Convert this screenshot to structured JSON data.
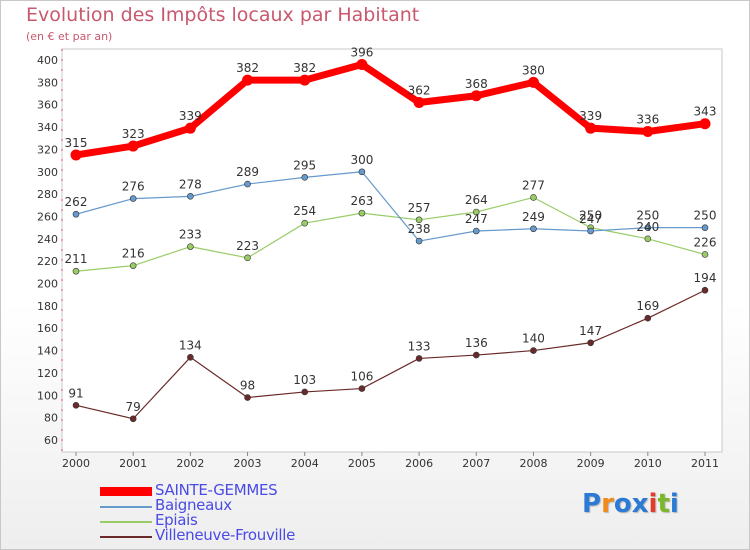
{
  "title": "Evolution des Impôts locaux par Habitant",
  "subtitle": "(en € et par an)",
  "chart_data": {
    "type": "line",
    "title": "Evolution des Impôts locaux par Habitant",
    "ylabel": "(en € et par an)",
    "xlabel": "",
    "x": [
      "2000",
      "2001",
      "2002",
      "2003",
      "2004",
      "2005",
      "2006",
      "2007",
      "2008",
      "2009",
      "2010",
      "2011"
    ],
    "ylim": [
      60,
      400
    ],
    "yticks": [
      60,
      80,
      100,
      120,
      140,
      160,
      180,
      200,
      220,
      240,
      260,
      280,
      300,
      320,
      340,
      360,
      380,
      400
    ],
    "grid": false,
    "series": [
      {
        "name": "SAINTE-GEMMES",
        "color": "#ff0000",
        "values": [
          315,
          323,
          339,
          382,
          382,
          396,
          362,
          368,
          380,
          339,
          336,
          343
        ]
      },
      {
        "name": "Baigneaux",
        "color": "#6699cc",
        "values": [
          262,
          276,
          278,
          289,
          295,
          300,
          238,
          247,
          249,
          247,
          250,
          250
        ]
      },
      {
        "name": "Epiais",
        "color": "#99cc66",
        "values": [
          211,
          216,
          233,
          223,
          254,
          263,
          257,
          264,
          277,
          250,
          240,
          226
        ]
      },
      {
        "name": "Villeneuve-Frouville",
        "color": "#6b2a2a",
        "values": [
          91,
          79,
          134,
          98,
          103,
          106,
          133,
          136,
          140,
          147,
          169,
          194
        ]
      }
    ]
  },
  "legend": [
    {
      "label": "SAINTE-GEMMES",
      "color": "#ff0000"
    },
    {
      "label": "Baigneaux",
      "color": "#6699cc"
    },
    {
      "label": "Epiais",
      "color": "#99cc66"
    },
    {
      "label": "Villeneuve-Frouville",
      "color": "#6b2a2a"
    }
  ],
  "logo": {
    "letters": [
      "P",
      "r",
      "o",
      "x",
      "i",
      "t",
      "i"
    ],
    "colors": [
      "#2a7ad6",
      "#f08a1c",
      "#2a7ad6",
      "#2a7ad6",
      "#e43c2a",
      "#7ab82a",
      "#2a7ad6"
    ]
  }
}
